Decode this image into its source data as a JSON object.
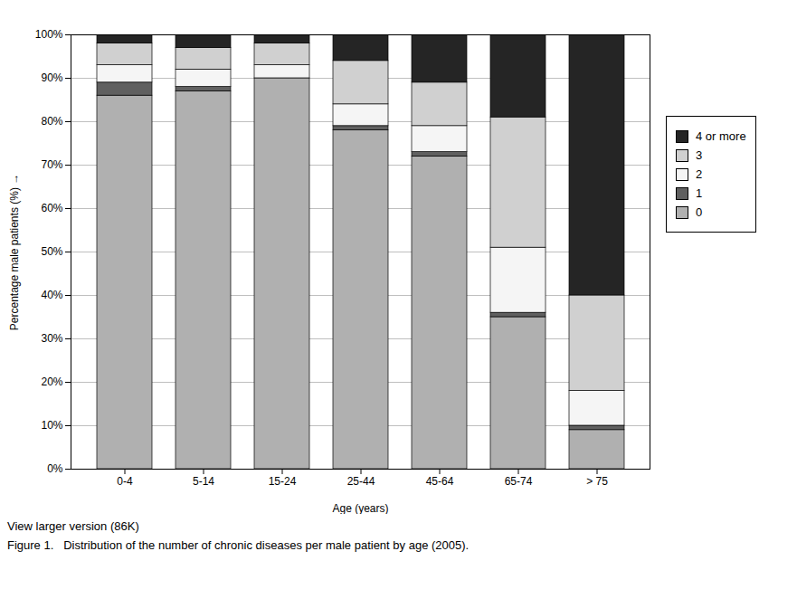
{
  "chart_data": {
    "type": "bar",
    "stacked": true,
    "categories": [
      "0-4",
      "5-14",
      "15-24",
      "25-44",
      "45-64",
      "65-74",
      "> 75"
    ],
    "series": [
      {
        "name": "0",
        "color": "#b0b0b0",
        "values": [
          86,
          87,
          90,
          78,
          72,
          35,
          9
        ]
      },
      {
        "name": "1",
        "color": "#606060",
        "values": [
          3,
          1,
          0,
          1,
          1,
          1,
          1
        ]
      },
      {
        "name": "2",
        "color": "#f5f5f5",
        "values": [
          4,
          4,
          3,
          5,
          6,
          15,
          8
        ]
      },
      {
        "name": "3",
        "color": "#d0d0d0",
        "values": [
          5,
          5,
          5,
          10,
          10,
          30,
          22
        ]
      },
      {
        "name": "4 or more",
        "color": "#252525",
        "values": [
          2,
          3,
          2,
          6,
          11,
          19,
          60
        ]
      }
    ],
    "xlabel": "Age (years)",
    "ylabel": "Percentage male patients (%)",
    "ylim": [
      0,
      100
    ],
    "yticks": [
      {
        "value": 0,
        "label": "0%"
      },
      {
        "value": 10,
        "label": "10%"
      },
      {
        "value": 20,
        "label": "20%"
      },
      {
        "value": 30,
        "label": "30%"
      },
      {
        "value": 40,
        "label": "40%"
      },
      {
        "value": 50,
        "label": "50%"
      },
      {
        "value": 60,
        "label": "60%"
      },
      {
        "value": 70,
        "label": "70%"
      },
      {
        "value": 80,
        "label": "80%"
      },
      {
        "value": 90,
        "label": "90%"
      },
      {
        "value": 100,
        "label": "100%"
      }
    ],
    "grid": true,
    "legend": "right",
    "annotations": [
      "View larger version (86K)",
      "Figure 1.   Distribution of the number of chronic diseases per male patient by age (2005)."
    ]
  }
}
